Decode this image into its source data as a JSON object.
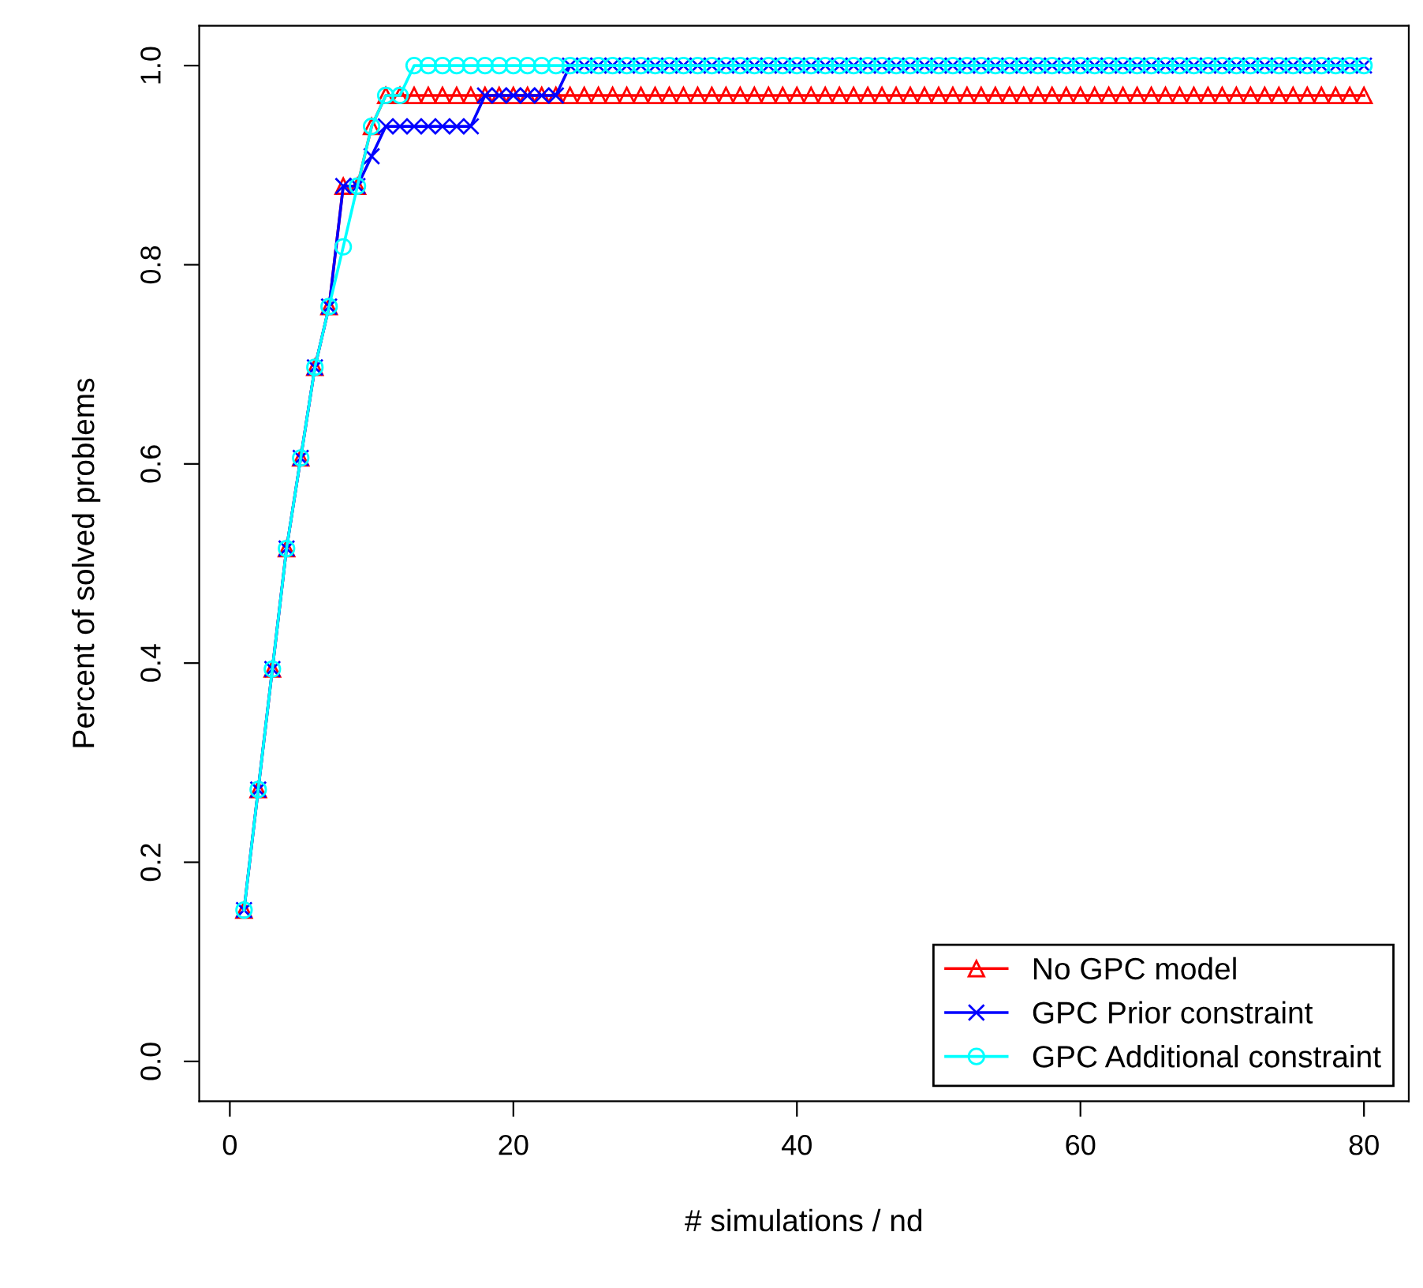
{
  "chart_data": {
    "type": "line",
    "xlabel": "# simulations / nd",
    "ylabel": "Percent of solved problems",
    "x": [
      1,
      2,
      3,
      4,
      5,
      6,
      7,
      8,
      9,
      10,
      11,
      12,
      13,
      14,
      15,
      16,
      17,
      18,
      19,
      20,
      21,
      22,
      23,
      24,
      25,
      26,
      27,
      28,
      29,
      30,
      31,
      32,
      33,
      34,
      35,
      36,
      37,
      38,
      39,
      40,
      41,
      42,
      43,
      44,
      45,
      46,
      47,
      48,
      49,
      50,
      51,
      52,
      53,
      54,
      55,
      56,
      57,
      58,
      59,
      60,
      61,
      62,
      63,
      64,
      65,
      66,
      67,
      68,
      69,
      70,
      71,
      72,
      73,
      74,
      75,
      76,
      77,
      78,
      79,
      80
    ],
    "series": [
      {
        "name": "No GPC model",
        "color": "#ff0000",
        "marker": "triangle",
        "values": [
          0.152,
          0.273,
          0.394,
          0.515,
          0.606,
          0.697,
          0.758,
          0.879,
          0.879,
          0.939,
          0.97,
          0.97,
          0.97,
          0.97,
          0.97,
          0.97,
          0.97,
          0.97,
          0.97,
          0.97,
          0.97,
          0.97,
          0.97,
          0.97,
          0.97,
          0.97,
          0.97,
          0.97,
          0.97,
          0.97,
          0.97,
          0.97,
          0.97,
          0.97,
          0.97,
          0.97,
          0.97,
          0.97,
          0.97,
          0.97,
          0.97,
          0.97,
          0.97,
          0.97,
          0.97,
          0.97,
          0.97,
          0.97,
          0.97,
          0.97,
          0.97,
          0.97,
          0.97,
          0.97,
          0.97,
          0.97,
          0.97,
          0.97,
          0.97,
          0.97,
          0.97,
          0.97,
          0.97,
          0.97,
          0.97,
          0.97,
          0.97,
          0.97,
          0.97,
          0.97,
          0.97,
          0.97,
          0.97,
          0.97,
          0.97,
          0.97,
          0.97,
          0.97,
          0.97,
          0.97
        ]
      },
      {
        "name": "GPC Prior constraint",
        "color": "#0000ff",
        "marker": "cross",
        "values": [
          0.152,
          0.273,
          0.394,
          0.515,
          0.606,
          0.697,
          0.758,
          0.879,
          0.879,
          0.909,
          0.939,
          0.939,
          0.939,
          0.939,
          0.939,
          0.939,
          0.939,
          0.97,
          0.97,
          0.97,
          0.97,
          0.97,
          0.97,
          1.0,
          1.0,
          1.0,
          1.0,
          1.0,
          1.0,
          1.0,
          1.0,
          1.0,
          1.0,
          1.0,
          1.0,
          1.0,
          1.0,
          1.0,
          1.0,
          1.0,
          1.0,
          1.0,
          1.0,
          1.0,
          1.0,
          1.0,
          1.0,
          1.0,
          1.0,
          1.0,
          1.0,
          1.0,
          1.0,
          1.0,
          1.0,
          1.0,
          1.0,
          1.0,
          1.0,
          1.0,
          1.0,
          1.0,
          1.0,
          1.0,
          1.0,
          1.0,
          1.0,
          1.0,
          1.0,
          1.0,
          1.0,
          1.0,
          1.0,
          1.0,
          1.0,
          1.0,
          1.0,
          1.0,
          1.0,
          1.0
        ]
      },
      {
        "name": "GPC Additional constraint",
        "color": "#00ffff",
        "marker": "circle",
        "values": [
          0.152,
          0.273,
          0.394,
          0.515,
          0.606,
          0.697,
          0.758,
          0.818,
          0.879,
          0.939,
          0.97,
          0.97,
          1.0,
          1.0,
          1.0,
          1.0,
          1.0,
          1.0,
          1.0,
          1.0,
          1.0,
          1.0,
          1.0,
          1.0,
          1.0,
          1.0,
          1.0,
          1.0,
          1.0,
          1.0,
          1.0,
          1.0,
          1.0,
          1.0,
          1.0,
          1.0,
          1.0,
          1.0,
          1.0,
          1.0,
          1.0,
          1.0,
          1.0,
          1.0,
          1.0,
          1.0,
          1.0,
          1.0,
          1.0,
          1.0,
          1.0,
          1.0,
          1.0,
          1.0,
          1.0,
          1.0,
          1.0,
          1.0,
          1.0,
          1.0,
          1.0,
          1.0,
          1.0,
          1.0,
          1.0,
          1.0,
          1.0,
          1.0,
          1.0,
          1.0,
          1.0,
          1.0,
          1.0,
          1.0,
          1.0,
          1.0,
          1.0,
          1.0,
          1.0,
          1.0
        ]
      }
    ],
    "xlim": [
      -2.16,
      83.16
    ],
    "ylim": [
      -0.04,
      1.04
    ],
    "xticks": [
      0,
      20,
      40,
      60,
      80
    ],
    "yticks": [
      {
        "value": 0,
        "label": "0.0"
      },
      0.2,
      0.4,
      0.6,
      0.8,
      {
        "value": 1,
        "label": "1.0"
      }
    ],
    "grid": false,
    "legend": "bottom right",
    "line_style": "solid"
  }
}
